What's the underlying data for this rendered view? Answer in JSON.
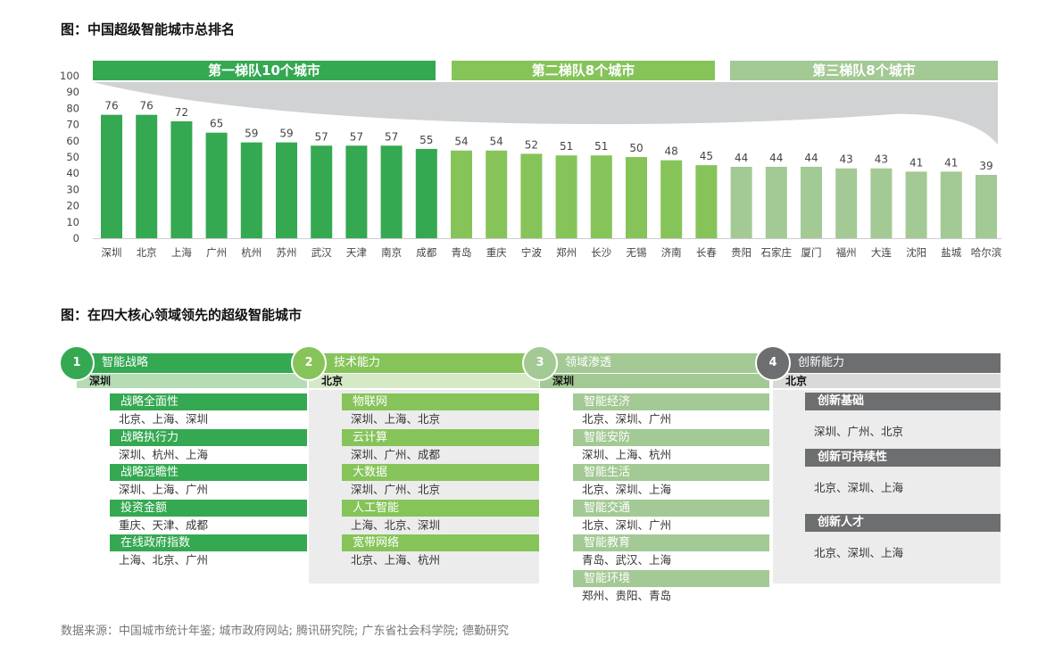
{
  "fig1_title": "图：中国超级智能城市总排名",
  "fig2_title": "图：在四大核心领域领先的超级智能城市",
  "tiers": [
    "第一梯队10个城市",
    "第二梯队8个城市",
    "第三梯队8个城市"
  ],
  "colors": {
    "tier1": "#35a852",
    "tier2": "#86c45a",
    "tier3": "#a3c994",
    "gray": "#d0d2d3",
    "panel4": "#6d6e70"
  },
  "chart_data": {
    "type": "bar",
    "categories": [
      "深圳",
      "北京",
      "上海",
      "广州",
      "杭州",
      "苏州",
      "武汉",
      "天津",
      "南京",
      "成都",
      "青岛",
      "重庆",
      "宁波",
      "郑州",
      "长沙",
      "无锡",
      "济南",
      "长春",
      "贵阳",
      "石家庄",
      "厦门",
      "福州",
      "大连",
      "沈阳",
      "盐城",
      "哈尔滨"
    ],
    "values": [
      76,
      76,
      72,
      65,
      59,
      59,
      57,
      57,
      57,
      55,
      54,
      54,
      52,
      51,
      51,
      50,
      48,
      45,
      44,
      44,
      44,
      43,
      43,
      41,
      41,
      39
    ],
    "yticks": [
      0,
      10,
      20,
      30,
      40,
      50,
      60,
      70,
      80,
      90,
      100
    ],
    "ylim": [
      0,
      100
    ]
  },
  "panels": [
    {
      "num": "1",
      "title": "智能战略",
      "lead": "深圳",
      "items": [
        {
          "label": "战略全面性",
          "value": "北京、上海、深圳"
        },
        {
          "label": "战略执行力",
          "value": "深圳、杭州、上海"
        },
        {
          "label": "战略远瞻性",
          "value": "深圳、上海、广州"
        },
        {
          "label": "投资金额",
          "value": "重庆、天津、成都"
        },
        {
          "label": "在线政府指数",
          "value": "上海、北京、广州"
        }
      ]
    },
    {
      "num": "2",
      "title": "技术能力",
      "lead": "北京",
      "items": [
        {
          "label": "物联网",
          "value": "深圳、上海、北京"
        },
        {
          "label": "云计算",
          "value": "深圳、广州、成都"
        },
        {
          "label": "大数据",
          "value": "深圳、广州、北京"
        },
        {
          "label": "人工智能",
          "value": "上海、北京、深圳"
        },
        {
          "label": "宽带网络",
          "value": "北京、上海、杭州"
        }
      ]
    },
    {
      "num": "3",
      "title": "领域渗透",
      "lead": "深圳",
      "items": [
        {
          "label": "智能经济",
          "value": "北京、深圳、广州"
        },
        {
          "label": "智能安防",
          "value": "深圳、上海、杭州"
        },
        {
          "label": "智能生活",
          "value": "北京、深圳、上海"
        },
        {
          "label": "智能交通",
          "value": "北京、深圳、广州"
        },
        {
          "label": "智能教育",
          "value": "青岛、武汉、上海"
        },
        {
          "label": "智能环境",
          "value": "郑州、贵阳、青岛"
        }
      ]
    },
    {
      "num": "4",
      "title": "创新能力",
      "lead": "北京",
      "items": [
        {
          "label": "创新基础",
          "value": "深圳、广州、北京"
        },
        {
          "label": "创新可持续性",
          "value": "北京、深圳、上海"
        },
        {
          "label": "创新人才",
          "value": "北京、深圳、上海"
        }
      ]
    }
  ],
  "source": "数据来源：中国城市统计年鉴; 城市政府网站; 腾讯研究院; 广东省社会科学院; 德勤研究"
}
